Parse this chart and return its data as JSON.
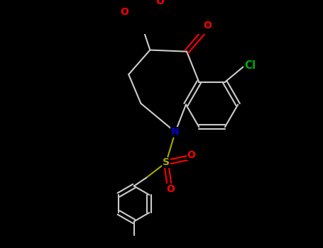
{
  "background_color": "#000000",
  "bond_color": "#cccccc",
  "atom_colors": {
    "O": "#ff0000",
    "N": "#0000cc",
    "Cl": "#00aa00",
    "S": "#aaaa00",
    "C": "#cccccc"
  },
  "figsize": [
    4.55,
    3.5
  ],
  "dpi": 100,
  "xlim": [
    0,
    9.1
  ],
  "ylim": [
    0,
    7.0
  ]
}
